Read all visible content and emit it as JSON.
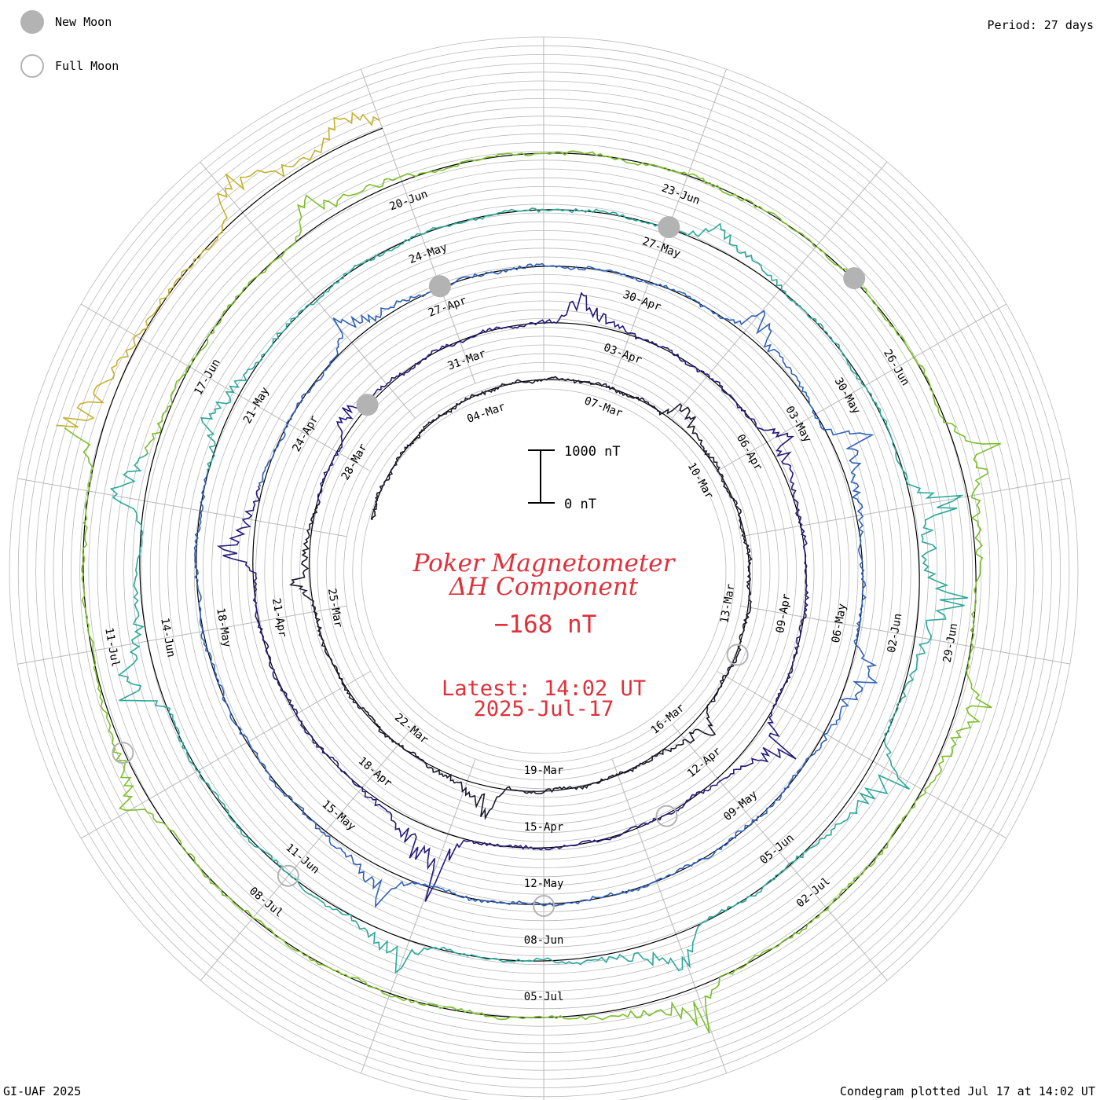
{
  "legend": {
    "new_moon": "New Moon",
    "full_moon": "Full Moon"
  },
  "period": "Period: 27 days",
  "footer_left": "GI-UAF 2025",
  "footer_right": "Condegram plotted Jul 17 at 14:02 UT",
  "title": {
    "line1": "Poker Magnetometer",
    "line2": "ΔH Component",
    "current_value": "−168 nT",
    "latest_label": "Latest: 14:02 UT",
    "latest_date": "2025-Jul-17"
  },
  "scale_bar": {
    "top_label": "1000 nT",
    "bottom_label": "0 nT"
  },
  "colors": {
    "title": "#e0303a",
    "grid": "#b8b8b8",
    "moon": "#b3b3b3",
    "rings": [
      "#1a1a2e",
      "#241a7a",
      "#2f61b8",
      "#2aa89a",
      "#7cbf2a",
      "#c5b02a",
      "#c77a1a",
      "#c42a1a",
      "#c40a1a"
    ]
  },
  "chart_data": {
    "type": "line",
    "rotation_period_days": 27,
    "date_labels": [
      {
        "label": "04-Mar",
        "day": 0
      },
      {
        "label": "07-Mar",
        "day": 3
      },
      {
        "label": "10-Mar",
        "day": 6
      },
      {
        "label": "13-Mar",
        "day": 9
      },
      {
        "label": "16-Mar",
        "day": 12
      },
      {
        "label": "19-Mar",
        "day": 15
      },
      {
        "label": "22-Mar",
        "day": 18
      },
      {
        "label": "25-Mar",
        "day": 21
      },
      {
        "label": "28-Mar",
        "day": 24
      },
      {
        "label": "31-Mar",
        "day": 27
      },
      {
        "label": "03-Apr",
        "day": 30
      },
      {
        "label": "06-Apr",
        "day": 33
      },
      {
        "label": "09-Apr",
        "day": 36
      },
      {
        "label": "12-Apr",
        "day": 39
      },
      {
        "label": "15-Apr",
        "day": 42
      },
      {
        "label": "18-Apr",
        "day": 45
      },
      {
        "label": "21-Apr",
        "day": 48
      },
      {
        "label": "24-Apr",
        "day": 51
      },
      {
        "label": "27-Apr",
        "day": 54
      },
      {
        "label": "30-Apr",
        "day": 57
      },
      {
        "label": "03-May",
        "day": 60
      },
      {
        "label": "06-May",
        "day": 63
      },
      {
        "label": "09-May",
        "day": 66
      },
      {
        "label": "12-May",
        "day": 69
      },
      {
        "label": "15-May",
        "day": 72
      },
      {
        "label": "18-May",
        "day": 75
      },
      {
        "label": "21-May",
        "day": 78
      },
      {
        "label": "24-May",
        "day": 81
      },
      {
        "label": "27-May",
        "day": 84
      },
      {
        "label": "30-May",
        "day": 87
      },
      {
        "label": "02-Jun",
        "day": 90
      },
      {
        "label": "05-Jun",
        "day": 93
      },
      {
        "label": "08-Jun",
        "day": 96
      },
      {
        "label": "11-Jun",
        "day": 99
      },
      {
        "label": "14-Jun",
        "day": 102
      },
      {
        "label": "17-Jun",
        "day": 105
      },
      {
        "label": "20-Jun",
        "day": 108
      },
      {
        "label": "23-Jun",
        "day": 111
      },
      {
        "label": "26-Jun",
        "day": 114
      },
      {
        "label": "29-Jun",
        "day": 117
      },
      {
        "label": "02-Jul",
        "day": 120
      },
      {
        "label": "05-Jul",
        "day": 123
      },
      {
        "label": "08-Jul",
        "day": 126
      },
      {
        "label": "11-Jul",
        "day": 129
      }
    ],
    "new_moons": [
      {
        "date": "2025-03-29",
        "day": 25
      },
      {
        "date": "2025-04-27",
        "day": 54
      },
      {
        "date": "2025-05-27",
        "day": 84
      },
      {
        "date": "2025-06-25",
        "day": 113
      }
    ],
    "full_moons": [
      {
        "date": "2025-03-14",
        "day": 10
      },
      {
        "date": "2025-04-13",
        "day": 40
      },
      {
        "date": "2025-05-12",
        "day": 69
      },
      {
        "date": "2025-06-11",
        "day": 99
      },
      {
        "date": "2025-07-10",
        "day": 128
      }
    ],
    "start_day": -4,
    "end_day": 135,
    "latest_value_nT": -168,
    "disturbances": [
      {
        "day": 4.5,
        "amp": 520
      },
      {
        "day": 11.5,
        "amp": 450
      },
      {
        "day": 16,
        "amp": 600
      },
      {
        "day": 21.5,
        "amp": 380
      },
      {
        "day": 24.5,
        "amp": 420
      },
      {
        "day": 29,
        "amp": 650
      },
      {
        "day": 33,
        "amp": 520
      },
      {
        "day": 38,
        "amp": 700
      },
      {
        "day": 43.5,
        "amp": 1300
      },
      {
        "day": 49,
        "amp": 620
      },
      {
        "day": 52.5,
        "amp": 540
      },
      {
        "day": 58.5,
        "amp": 540
      },
      {
        "day": 60.5,
        "amp": 700
      },
      {
        "day": 63.5,
        "amp": 580
      },
      {
        "day": 71,
        "amp": 560
      },
      {
        "day": 77.5,
        "amp": 500
      },
      {
        "day": 84.5,
        "amp": 460
      },
      {
        "day": 88.5,
        "amp": 900
      },
      {
        "day": 89.5,
        "amp": 800
      },
      {
        "day": 91.5,
        "amp": 780
      },
      {
        "day": 94.5,
        "amp": 720
      },
      {
        "day": 97.5,
        "amp": 520
      },
      {
        "day": 101.5,
        "amp": 850
      },
      {
        "day": 103.5,
        "amp": 600
      },
      {
        "day": 107,
        "amp": 600
      },
      {
        "day": 115,
        "amp": 800
      },
      {
        "day": 117.5,
        "amp": 600
      },
      {
        "day": 121.5,
        "amp": 800
      },
      {
        "day": 127.5,
        "amp": 500
      },
      {
        "day": 131,
        "amp": 820
      },
      {
        "day": 133.5,
        "amp": 780
      },
      {
        "day": 134.6,
        "amp": 520
      }
    ]
  }
}
